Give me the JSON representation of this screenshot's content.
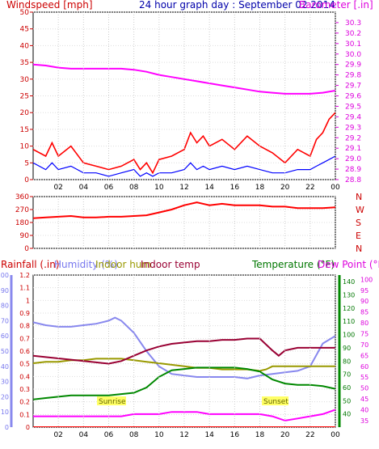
{
  "chart_data": [
    {
      "type": "line",
      "title": "24 hour graph day : September 02 2014",
      "x_tick_labels": [
        "02",
        "04",
        "06",
        "08",
        "10",
        "12",
        "14",
        "16",
        "18",
        "20",
        "22",
        "00"
      ],
      "y_left_label": "Windspeed [mph]",
      "y_left_ticks": [
        0,
        5,
        10,
        15,
        20,
        25,
        30,
        35,
        40,
        45,
        50
      ],
      "y_left_range": [
        0,
        50
      ],
      "y_right_label": "Barometer [.in]",
      "y_right_ticks": [
        28.8,
        28.9,
        29.0,
        29.1,
        29.2,
        29.3,
        29.4,
        29.5,
        29.6,
        29.7,
        29.8,
        29.9,
        30.0,
        30.1,
        30.2,
        30.3
      ],
      "y_right_range": [
        28.8,
        30.4
      ],
      "series": [
        {
          "color": "#ff0000",
          "x": [
            0,
            1,
            1.5,
            2,
            3,
            4,
            5,
            6,
            7,
            8,
            8.5,
            9,
            9.5,
            10,
            11,
            12,
            12.5,
            13,
            13.5,
            14,
            15,
            16,
            17,
            18,
            19,
            20,
            21,
            22,
            22.5,
            23,
            23.5,
            24
          ],
          "y": [
            9,
            7,
            11,
            7,
            10,
            5,
            4,
            3,
            4,
            6,
            3,
            5,
            2,
            6,
            7,
            9,
            14,
            11,
            13,
            10,
            12,
            9,
            13,
            10,
            8,
            5,
            9,
            7,
            12,
            14,
            18,
            20
          ]
        },
        {
          "color": "#0000ff",
          "x": [
            0,
            1,
            1.5,
            2,
            3,
            4,
            5,
            6,
            7,
            8,
            8.5,
            9,
            9.5,
            10,
            11,
            12,
            12.5,
            13,
            13.5,
            14,
            15,
            16,
            17,
            18,
            19,
            20,
            21,
            22,
            22.5,
            23,
            23.5,
            24
          ],
          "y": [
            5,
            3,
            5,
            3,
            4,
            2,
            2,
            1,
            2,
            3,
            1,
            2,
            1,
            2,
            2,
            3,
            5,
            3,
            4,
            3,
            4,
            3,
            4,
            3,
            2,
            2,
            3,
            3,
            4,
            5,
            6,
            7
          ]
        },
        {
          "color": "#ff00ff",
          "x": [
            0,
            1,
            2,
            3,
            4,
            5,
            6,
            7,
            8,
            9,
            10,
            11,
            12,
            13,
            14,
            15,
            16,
            17,
            18,
            19,
            20,
            21,
            22,
            23,
            24
          ],
          "y": [
            29.9,
            29.89,
            29.87,
            29.86,
            29.86,
            29.86,
            29.86,
            29.86,
            29.85,
            29.83,
            29.8,
            29.78,
            29.76,
            29.74,
            29.72,
            29.7,
            29.68,
            29.66,
            29.64,
            29.63,
            29.62,
            29.62,
            29.62,
            29.63,
            29.65
          ]
        }
      ]
    },
    {
      "type": "line",
      "y_left_ticks": [
        0,
        90,
        180,
        270,
        360
      ],
      "y_left_range": [
        0,
        360
      ],
      "y_right_labels": [
        "N",
        "W",
        "S",
        "E",
        "N"
      ],
      "series": [
        {
          "color": "#ff0000",
          "name": "wind direction",
          "x": [
            0,
            1,
            2,
            3,
            4,
            5,
            6,
            7,
            8,
            9,
            10,
            11,
            12,
            13,
            14,
            15,
            16,
            17,
            18,
            19,
            20,
            21,
            22,
            23,
            24
          ],
          "y": [
            210,
            215,
            220,
            225,
            215,
            215,
            220,
            220,
            225,
            230,
            250,
            270,
            300,
            320,
            300,
            310,
            300,
            300,
            300,
            290,
            290,
            280,
            280,
            280,
            285
          ]
        }
      ]
    },
    {
      "type": "line",
      "legend": [
        "Rainfall (.in)",
        "Humidity (%)",
        "Indoor hum",
        "Indoor temp",
        "Temperature (°F)",
        "Dew Point (°F)"
      ],
      "y_rain_ticks": [
        0,
        0.1,
        0.2,
        0.3,
        0.4,
        0.5,
        0.6,
        0.7,
        0.8,
        0.9,
        1,
        1.1,
        1.2
      ],
      "y_rain_range": [
        0,
        1.2
      ],
      "y_humidity_ticks": [
        0,
        10,
        20,
        30,
        40,
        50,
        60,
        70,
        80,
        90,
        100
      ],
      "y_humidity_range": [
        0,
        100
      ],
      "y_temperature_ticks": [
        40,
        50,
        60,
        70,
        80,
        90,
        100,
        110,
        120,
        130,
        140
      ],
      "y_temperature_range": [
        30,
        145
      ],
      "y_dewpoint_ticks": [
        35,
        40,
        45,
        50,
        55,
        60,
        65,
        70,
        75,
        80,
        85,
        90,
        95,
        100
      ],
      "y_dewpoint_range": [
        32,
        102
      ],
      "annotations": [
        "Sunrise",
        "Sunset"
      ],
      "series": [
        {
          "name": "Humidity (%)",
          "color": "#8888ee",
          "x": [
            0,
            1,
            2,
            3,
            4,
            5,
            6,
            6.5,
            7,
            8,
            9,
            10,
            11,
            12,
            13,
            14,
            15,
            16,
            17,
            17.5,
            18,
            19,
            20,
            21,
            22,
            23,
            24
          ],
          "y": [
            69,
            67,
            66,
            66,
            67,
            68,
            70,
            72,
            70,
            62,
            50,
            40,
            35,
            34,
            33,
            33,
            33,
            33,
            32,
            33,
            34,
            35,
            36,
            37,
            40,
            55,
            60
          ]
        },
        {
          "name": "Indoor hum",
          "color": "#999900",
          "x": [
            0,
            1,
            2,
            3,
            4,
            5,
            6,
            7,
            8,
            9,
            10,
            11,
            12,
            13,
            14,
            15,
            16,
            17,
            18,
            18.5,
            19,
            20,
            21,
            22,
            23,
            24
          ],
          "y": [
            42,
            43,
            43,
            44,
            44,
            45,
            45,
            45,
            44,
            43,
            42,
            41,
            40,
            39,
            39,
            38,
            38,
            38,
            37,
            38,
            40,
            40,
            40,
            40,
            40,
            40
          ]
        },
        {
          "name": "Indoor temp",
          "color": "#990033",
          "x": [
            0,
            1,
            2,
            3,
            4,
            5,
            6,
            7,
            8,
            9,
            10,
            11,
            12,
            13,
            14,
            15,
            16,
            17,
            18,
            19,
            19.5,
            20,
            21,
            22,
            23,
            24
          ],
          "y": [
            84,
            83,
            82,
            81,
            80,
            79,
            78,
            80,
            84,
            88,
            91,
            93,
            94,
            95,
            95,
            96,
            96,
            97,
            97,
            88,
            84,
            88,
            90,
            90,
            90,
            90
          ]
        },
        {
          "name": "Temperature (°F)",
          "color": "#008800",
          "x": [
            0,
            1,
            2,
            3,
            4,
            5,
            6,
            7,
            8,
            9,
            10,
            11,
            12,
            13,
            14,
            15,
            16,
            17,
            18,
            19,
            20,
            21,
            22,
            23,
            24
          ],
          "y": [
            51,
            52,
            53,
            54,
            54,
            54,
            54,
            55,
            56,
            60,
            68,
            73,
            74,
            75,
            75,
            75,
            75,
            74,
            72,
            66,
            63,
            62,
            62,
            61,
            59
          ]
        },
        {
          "name": "Dew Point (°F)",
          "color": "#ff00ff",
          "x": [
            0,
            1,
            2,
            3,
            4,
            5,
            6,
            7,
            8,
            9,
            10,
            11,
            12,
            13,
            14,
            15,
            16,
            17,
            18,
            19,
            20,
            21,
            22,
            23,
            24
          ],
          "y": [
            37,
            37,
            37,
            37,
            37,
            37,
            37,
            37,
            38,
            38,
            38,
            39,
            39,
            39,
            38,
            38,
            38,
            38,
            38,
            37,
            35,
            36,
            37,
            38,
            40
          ]
        },
        {
          "name": "Rainfall (.in)",
          "color": "#ff0000",
          "x": [
            0,
            24
          ],
          "y": [
            0,
            0
          ]
        }
      ]
    }
  ]
}
